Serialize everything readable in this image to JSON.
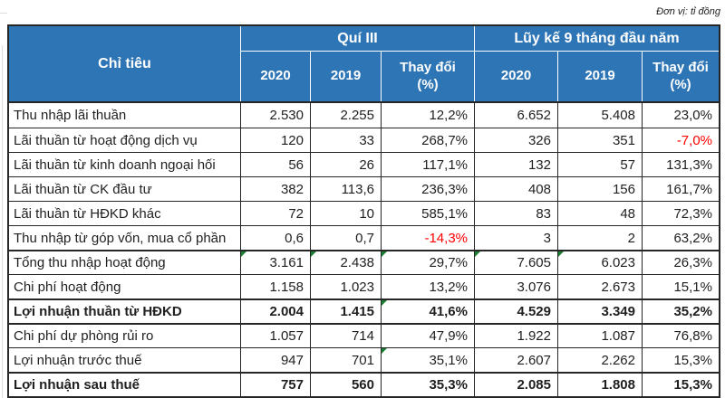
{
  "unit_note": "Đơn vị: tỉ đồng",
  "colors": {
    "header_blue": "#2E75B6",
    "border_dark": "#262626",
    "text_dark": "#1F1F1F",
    "negative_red": "#FF0000",
    "triangle_green": "#1D7D33"
  },
  "table": {
    "corner_header": "Chỉ tiêu",
    "groups": [
      {
        "label": "Quí III",
        "columns": [
          "2020",
          "2019",
          "Thay đổi (%)"
        ]
      },
      {
        "label": "Lũy kế 9 tháng đầu năm",
        "columns": [
          "2020",
          "2019",
          "Thay đổi (%)"
        ]
      }
    ],
    "rows": [
      {
        "label": "Thu nhập lãi thuần",
        "values": [
          "2.530",
          "2.255",
          "12,2%",
          "6.652",
          "5.408",
          "23,0%"
        ]
      },
      {
        "label": "Lãi thuần từ hoạt động dịch vụ",
        "values": [
          "120",
          "33",
          "268,7%",
          "326",
          "351",
          "-7,0%"
        ],
        "red_cols": [
          5
        ]
      },
      {
        "label": "Lãi thuần từ kinh doanh ngoại hối",
        "values": [
          "56",
          "26",
          "117,1%",
          "132",
          "57",
          "131,3%"
        ]
      },
      {
        "label": "Lãi thuần từ CK đầu tư",
        "values": [
          "382",
          "113,6",
          "236,3%",
          "408",
          "156",
          "161,7%"
        ]
      },
      {
        "label": "Lãi thuần từ HĐKD khác",
        "values": [
          "72",
          "10",
          "585,1%",
          "83",
          "48",
          "72,3%"
        ]
      },
      {
        "label": "Thu nhập từ góp vốn, mua cổ phần",
        "values": [
          "0,6",
          "0,7",
          "-14,3%",
          "3",
          "2",
          "63,2%"
        ],
        "red_cols": [
          2
        ]
      },
      {
        "label": "Tổng thu nhập hoạt động",
        "values": [
          "3.161",
          "2.438",
          "29,7%",
          "7.605",
          "6.023",
          "26,3%"
        ],
        "top_border": "medium",
        "flag_cols": [
          0,
          1,
          2,
          3,
          4
        ]
      },
      {
        "label": "Chi phí hoạt động",
        "values": [
          "1.158",
          "1.023",
          "13,2%",
          "3.076",
          "2.673",
          "15,1%"
        ]
      },
      {
        "label": "Lợi nhuận thuần từ HĐKD",
        "values": [
          "2.004",
          "1.415",
          "41,6%",
          "4.529",
          "3.349",
          "35,2%"
        ],
        "bold": true,
        "top_border": "medium",
        "flag_cols": [
          2
        ]
      },
      {
        "label": "Chi phí dự phòng rủi ro",
        "values": [
          "1.057",
          "714",
          "47,9%",
          "1.922",
          "1.087",
          "76,8%"
        ],
        "top_border": "medium"
      },
      {
        "label": "Lợi nhuận trước thuế",
        "values": [
          "947",
          "701",
          "35,1%",
          "2.607",
          "2.262",
          "15,3%"
        ],
        "flag_cols": [
          2
        ]
      },
      {
        "label": "Lợi nhuận sau thuế",
        "values": [
          "757",
          "560",
          "35,3%",
          "2.085",
          "1.808",
          "15,3%"
        ],
        "bold": true,
        "top_border": "medium"
      }
    ]
  }
}
